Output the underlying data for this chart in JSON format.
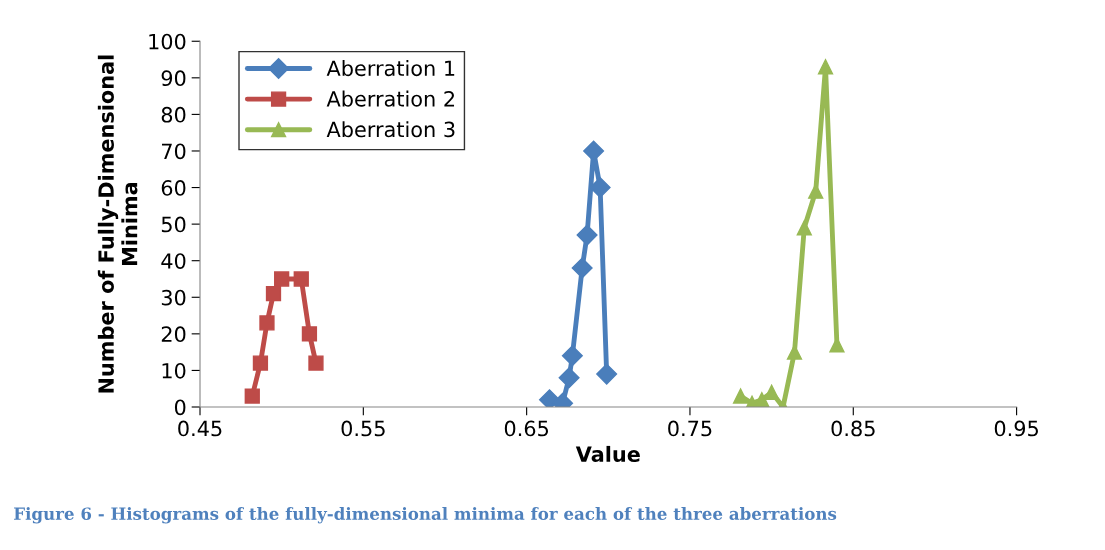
{
  "chart_data": {
    "type": "line",
    "xlabel": "Value",
    "ylabel": "Number of Fully-Dimensional\nMinima",
    "xlim": [
      0.45,
      0.95
    ],
    "xticks": [
      {
        "value": 0.45,
        "label": "0.45"
      },
      {
        "value": 0.55,
        "label": "0.55"
      },
      {
        "value": 0.65,
        "label": "0.65"
      },
      {
        "value": 0.75,
        "label": "0.75"
      },
      {
        "value": 0.85,
        "label": "0.85"
      },
      {
        "value": 0.95,
        "label": "0.95"
      }
    ],
    "ylim": [
      0,
      100
    ],
    "yticks": [
      0,
      10,
      20,
      30,
      40,
      50,
      60,
      70,
      80,
      90,
      100
    ],
    "grid": false,
    "legend": "top left",
    "annotations": [
      "Figure 6 - Histograms of the fully-dimensional minima for each of the three aberrations"
    ],
    "series": [
      {
        "name": "Aberration 1",
        "color": "#4a7ebb",
        "marker": "diamond",
        "x": [
          0.664,
          0.672,
          0.676,
          0.678,
          0.684,
          0.687,
          0.691,
          0.695,
          0.699
        ],
        "values": [
          2,
          1,
          8,
          14,
          38,
          47,
          70,
          60,
          9
        ]
      },
      {
        "name": "Aberration 2",
        "color": "#be4b48",
        "marker": "square",
        "x": [
          0.482,
          0.487,
          0.491,
          0.495,
          0.5,
          0.512,
          0.517,
          0.521
        ],
        "values": [
          3,
          12,
          23,
          31,
          35,
          35,
          20,
          12
        ]
      },
      {
        "name": "Aberration 3",
        "color": "#98b954",
        "marker": "triangle",
        "x": [
          0.781,
          0.788,
          0.794,
          0.8,
          0.807,
          0.814,
          0.82,
          0.827,
          0.833,
          0.84
        ],
        "values": [
          3,
          1,
          2,
          4,
          0,
          15,
          49,
          59,
          93,
          17
        ]
      }
    ]
  }
}
